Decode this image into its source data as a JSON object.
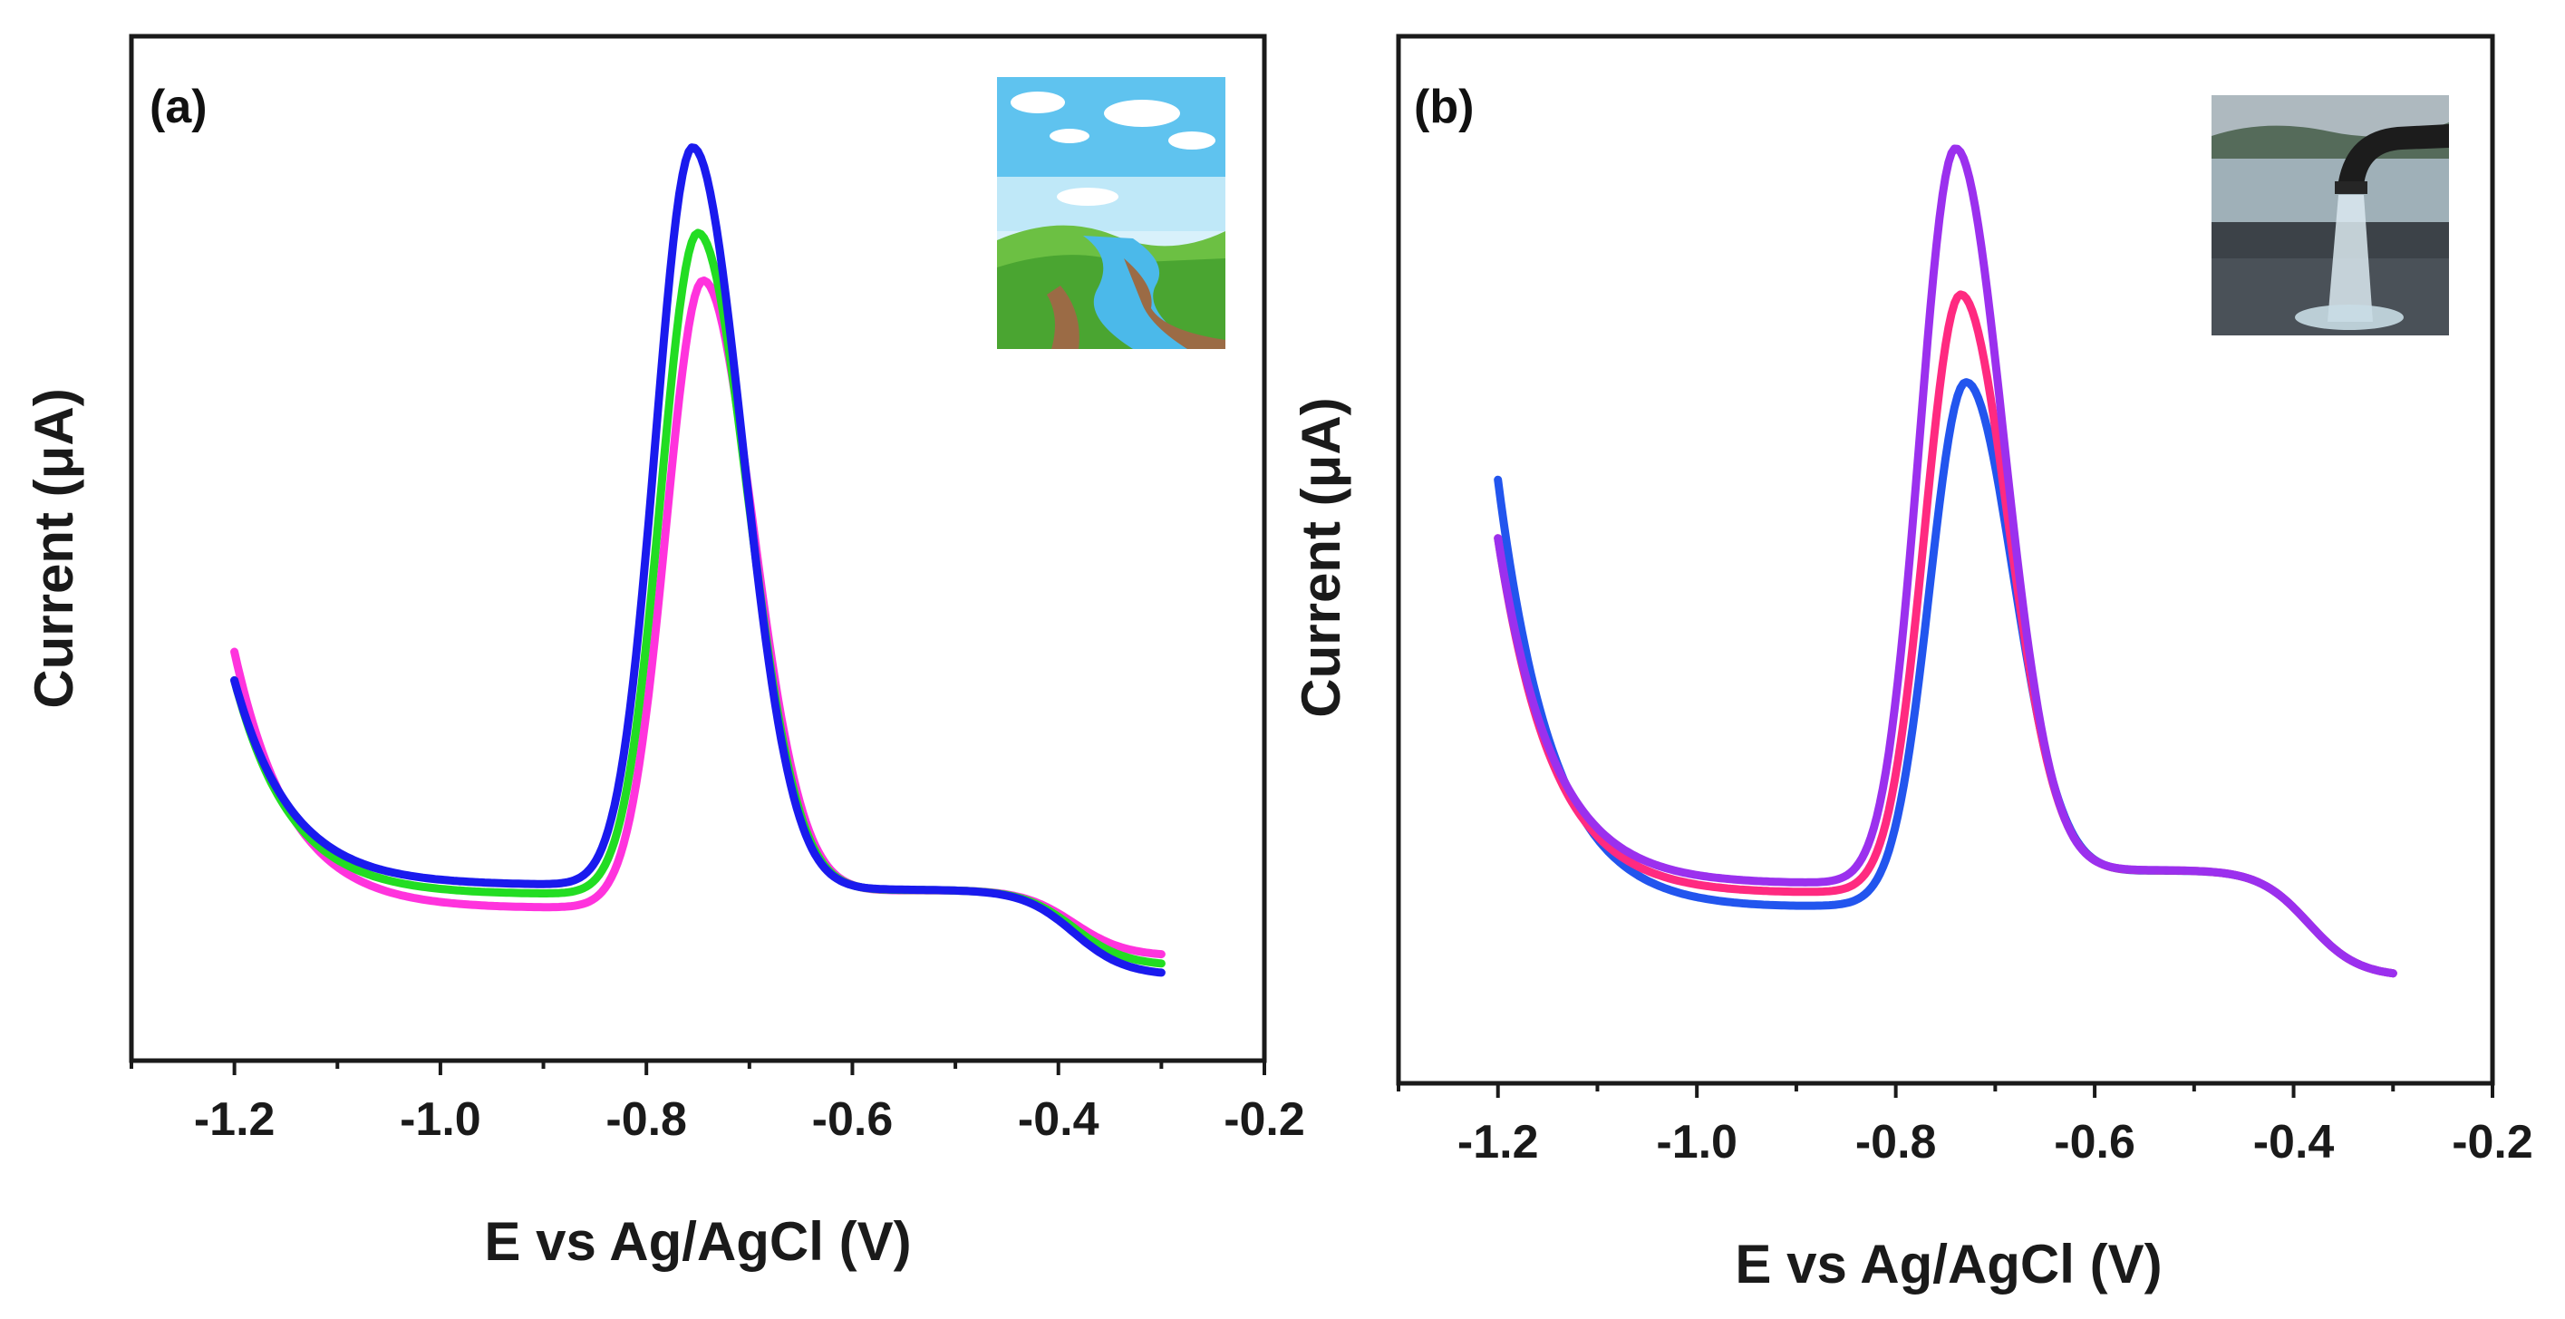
{
  "chart_data": [
    {
      "type": "line",
      "panel_label": "(a)",
      "xlabel": "E vs Ag/AgCl (V)",
      "ylabel": "Current (μA)",
      "xlim": [
        -1.3,
        -0.2
      ],
      "ylim": [
        0,
        1
      ],
      "x_ticks": [
        -1.2,
        -1.0,
        -0.8,
        -0.6,
        -0.4,
        -0.2
      ],
      "x_tick_labels": [
        "-1.2",
        "-1.0",
        "-0.8",
        "-0.6",
        "-0.4",
        "-0.2"
      ],
      "y_ticks_labeled": false,
      "grid": false,
      "inset_icon": "river-landscape-icon",
      "series": [
        {
          "color": "#ff33dd",
          "peak_x": -0.745,
          "peak_y": 0.81,
          "start_y": 0.42,
          "min_x": -0.98,
          "min_y": 0.15,
          "shoulder_y": 0.17,
          "end_y": 0.1
        },
        {
          "color": "#22dd22",
          "peak_x": -0.75,
          "peak_y": 0.86,
          "start_y": 0.39,
          "min_x": -0.98,
          "min_y": 0.165,
          "shoulder_y": 0.17,
          "end_y": 0.09
        },
        {
          "color": "#1a1aee",
          "peak_x": -0.755,
          "peak_y": 0.95,
          "start_y": 0.39,
          "min_x": -0.98,
          "min_y": 0.175,
          "shoulder_y": 0.17,
          "end_y": 0.08
        }
      ]
    },
    {
      "type": "line",
      "panel_label": "(b)",
      "xlabel": "E vs Ag/AgCl (V)",
      "ylabel": "Current (μA)",
      "xlim": [
        -1.3,
        -0.2
      ],
      "ylim": [
        0,
        1
      ],
      "x_ticks": [
        -1.2,
        -1.0,
        -0.8,
        -0.6,
        -0.4,
        -0.2
      ],
      "x_tick_labels": [
        "-1.2",
        "-1.0",
        "-0.8",
        "-0.6",
        "-0.4",
        "-0.2"
      ],
      "y_ticks_labeled": false,
      "grid": false,
      "inset_icon": "water-tap-icon",
      "series": [
        {
          "color": "#2255ee",
          "peak_x": -0.73,
          "peak_y": 0.71,
          "start_y": 0.61,
          "min_x": -0.96,
          "min_y": 0.17,
          "shoulder_y": 0.21,
          "end_y": 0.1
        },
        {
          "color": "#ff2a80",
          "peak_x": -0.735,
          "peak_y": 0.8,
          "start_y": 0.55,
          "min_x": -0.96,
          "min_y": 0.185,
          "shoulder_y": 0.21,
          "end_y": 0.1
        },
        {
          "color": "#9b30ee",
          "peak_x": -0.74,
          "peak_y": 0.95,
          "start_y": 0.55,
          "min_x": -0.96,
          "min_y": 0.195,
          "shoulder_y": 0.21,
          "end_y": 0.1
        }
      ]
    }
  ]
}
